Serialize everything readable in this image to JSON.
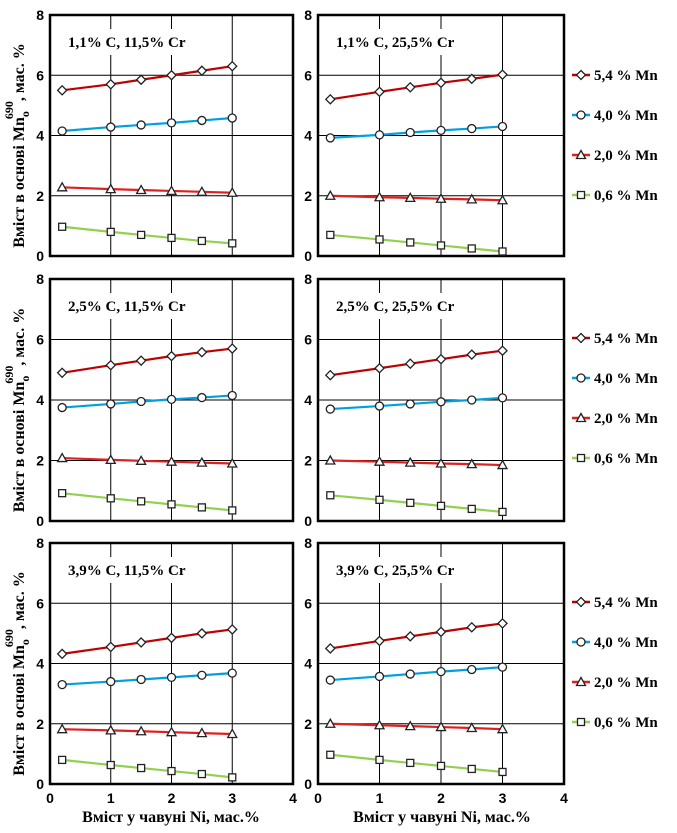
{
  "figure": {
    "ylabel_main": "Вміст в основі Mn",
    "ylabel_sub": "o",
    "ylabel_sup": "690",
    "ylabel_tail": ", мас. %",
    "xlabel": "Вміст у чавуні Ni, мас.%"
  },
  "legend": [
    {
      "label": "5,4 % Mn",
      "color": "#c00000",
      "marker": "diamond"
    },
    {
      "label": "4,0 % Mn",
      "color": "#00a0e0",
      "marker": "circle"
    },
    {
      "label": "2,0 % Mn",
      "color": "#e02020",
      "marker": "triangle"
    },
    {
      "label": "0,6 % Mn",
      "color": "#92d050",
      "marker": "square"
    }
  ],
  "chart_data": [
    {
      "type": "line",
      "title": "1,1% C, 11,5% Cr",
      "xlim": [
        0,
        4
      ],
      "ylim": [
        0,
        8
      ],
      "x": [
        0.2,
        1,
        1.5,
        2,
        2.5,
        3
      ],
      "series": [
        {
          "name": "5,4 % Mn",
          "values": [
            5.5,
            5.7,
            5.85,
            6.0,
            6.15,
            6.3
          ]
        },
        {
          "name": "4,0 % Mn",
          "values": [
            4.15,
            4.28,
            4.35,
            4.42,
            4.5,
            4.58
          ]
        },
        {
          "name": "2,0 % Mn",
          "values": [
            2.28,
            2.22,
            2.19,
            2.16,
            2.13,
            2.1
          ]
        },
        {
          "name": "0,6 % Mn",
          "values": [
            0.97,
            0.8,
            0.7,
            0.6,
            0.5,
            0.42
          ]
        }
      ]
    },
    {
      "type": "line",
      "title": "1,1% C, 25,5% Cr",
      "xlim": [
        0,
        4
      ],
      "ylim": [
        0,
        8
      ],
      "x": [
        0.2,
        1,
        1.5,
        2,
        2.5,
        3
      ],
      "series": [
        {
          "name": "5,4 % Mn",
          "values": [
            5.2,
            5.45,
            5.6,
            5.75,
            5.88,
            6.02
          ]
        },
        {
          "name": "4,0 % Mn",
          "values": [
            3.92,
            4.02,
            4.1,
            4.17,
            4.23,
            4.3
          ]
        },
        {
          "name": "2,0 % Mn",
          "values": [
            2.0,
            1.95,
            1.93,
            1.9,
            1.88,
            1.85
          ]
        },
        {
          "name": "0,6 % Mn",
          "values": [
            0.7,
            0.55,
            0.45,
            0.35,
            0.25,
            0.15
          ]
        }
      ]
    },
    {
      "type": "line",
      "title": "2,5% C, 11,5% Cr",
      "xlim": [
        0,
        4
      ],
      "ylim": [
        0,
        8
      ],
      "x": [
        0.2,
        1,
        1.5,
        2,
        2.5,
        3
      ],
      "series": [
        {
          "name": "5,4 % Mn",
          "values": [
            4.9,
            5.15,
            5.3,
            5.45,
            5.58,
            5.7
          ]
        },
        {
          "name": "4,0 % Mn",
          "values": [
            3.75,
            3.87,
            3.95,
            4.02,
            4.08,
            4.15
          ]
        },
        {
          "name": "2,0 % Mn",
          "values": [
            2.08,
            2.02,
            1.99,
            1.96,
            1.93,
            1.9
          ]
        },
        {
          "name": "0,6 % Mn",
          "values": [
            0.92,
            0.75,
            0.65,
            0.55,
            0.45,
            0.35
          ]
        }
      ]
    },
    {
      "type": "line",
      "title": "2,5% C, 25,5% Cr",
      "xlim": [
        0,
        4
      ],
      "ylim": [
        0,
        8
      ],
      "x": [
        0.2,
        1,
        1.5,
        2,
        2.5,
        3
      ],
      "series": [
        {
          "name": "5,4 % Mn",
          "values": [
            4.82,
            5.05,
            5.2,
            5.35,
            5.5,
            5.63
          ]
        },
        {
          "name": "4,0 % Mn",
          "values": [
            3.7,
            3.8,
            3.87,
            3.94,
            4.0,
            4.07
          ]
        },
        {
          "name": "2,0 % Mn",
          "values": [
            2.0,
            1.96,
            1.93,
            1.9,
            1.88,
            1.85
          ]
        },
        {
          "name": "0,6 % Mn",
          "values": [
            0.85,
            0.7,
            0.6,
            0.5,
            0.4,
            0.3
          ]
        }
      ]
    },
    {
      "type": "line",
      "title": "3,9% C, 11,5% Cr",
      "xlim": [
        0,
        4
      ],
      "ylim": [
        0,
        8
      ],
      "x": [
        0.2,
        1,
        1.5,
        2,
        2.5,
        3
      ],
      "series": [
        {
          "name": "5,4 % Mn",
          "values": [
            4.32,
            4.55,
            4.7,
            4.85,
            5.0,
            5.13
          ]
        },
        {
          "name": "4,0 % Mn",
          "values": [
            3.3,
            3.4,
            3.47,
            3.54,
            3.61,
            3.68
          ]
        },
        {
          "name": "2,0 % Mn",
          "values": [
            1.82,
            1.78,
            1.75,
            1.72,
            1.69,
            1.66
          ]
        },
        {
          "name": "0,6 % Mn",
          "values": [
            0.8,
            0.63,
            0.53,
            0.43,
            0.33,
            0.22
          ]
        }
      ]
    },
    {
      "type": "line",
      "title": "3,9% C,  25,5% Cr",
      "xlim": [
        0,
        4
      ],
      "ylim": [
        0,
        8
      ],
      "x": [
        0.2,
        1,
        1.5,
        2,
        2.5,
        3
      ],
      "series": [
        {
          "name": "5,4 % Mn",
          "values": [
            4.5,
            4.75,
            4.9,
            5.05,
            5.2,
            5.33
          ]
        },
        {
          "name": "4,0 % Mn",
          "values": [
            3.45,
            3.57,
            3.65,
            3.73,
            3.8,
            3.88
          ]
        },
        {
          "name": "2,0 % Mn",
          "values": [
            2.0,
            1.95,
            1.92,
            1.89,
            1.86,
            1.82
          ]
        },
        {
          "name": "0,6 % Mn",
          "values": [
            0.97,
            0.8,
            0.7,
            0.6,
            0.5,
            0.4
          ]
        }
      ]
    }
  ]
}
